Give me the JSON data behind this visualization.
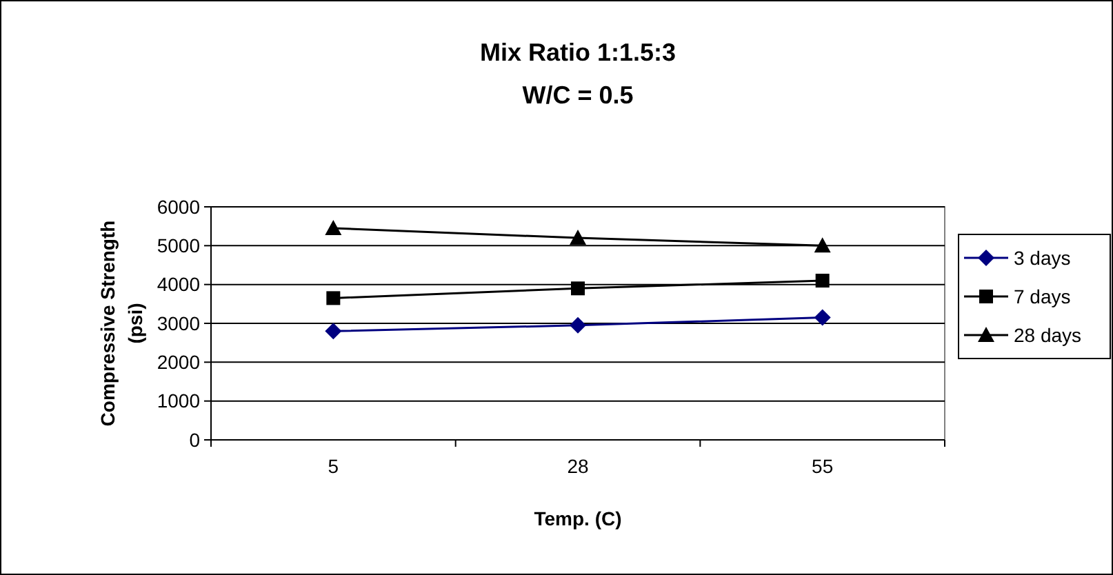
{
  "chart_data": {
    "type": "line",
    "title": "Mix Ratio 1:1.5:3",
    "subtitle": "W/C = 0.5",
    "xlabel": "Temp. (C)",
    "ylabel": "Compressive Strength (psi)",
    "categories": [
      "5",
      "28",
      "55"
    ],
    "series": [
      {
        "name": "3 days",
        "color": "#000080",
        "values": [
          2800,
          2950,
          3150
        ],
        "marker": "diamond"
      },
      {
        "name": "7 days",
        "color": "#000000",
        "values": [
          3650,
          3900,
          4100
        ],
        "marker": "square"
      },
      {
        "name": "28 days",
        "color": "#000000",
        "values": [
          5450,
          5200,
          5000
        ],
        "marker": "triangle"
      }
    ],
    "ylim": [
      0,
      6000
    ],
    "yticks": [
      0,
      1000,
      2000,
      3000,
      4000,
      5000,
      6000
    ],
    "grid": "y",
    "legend": "right"
  }
}
